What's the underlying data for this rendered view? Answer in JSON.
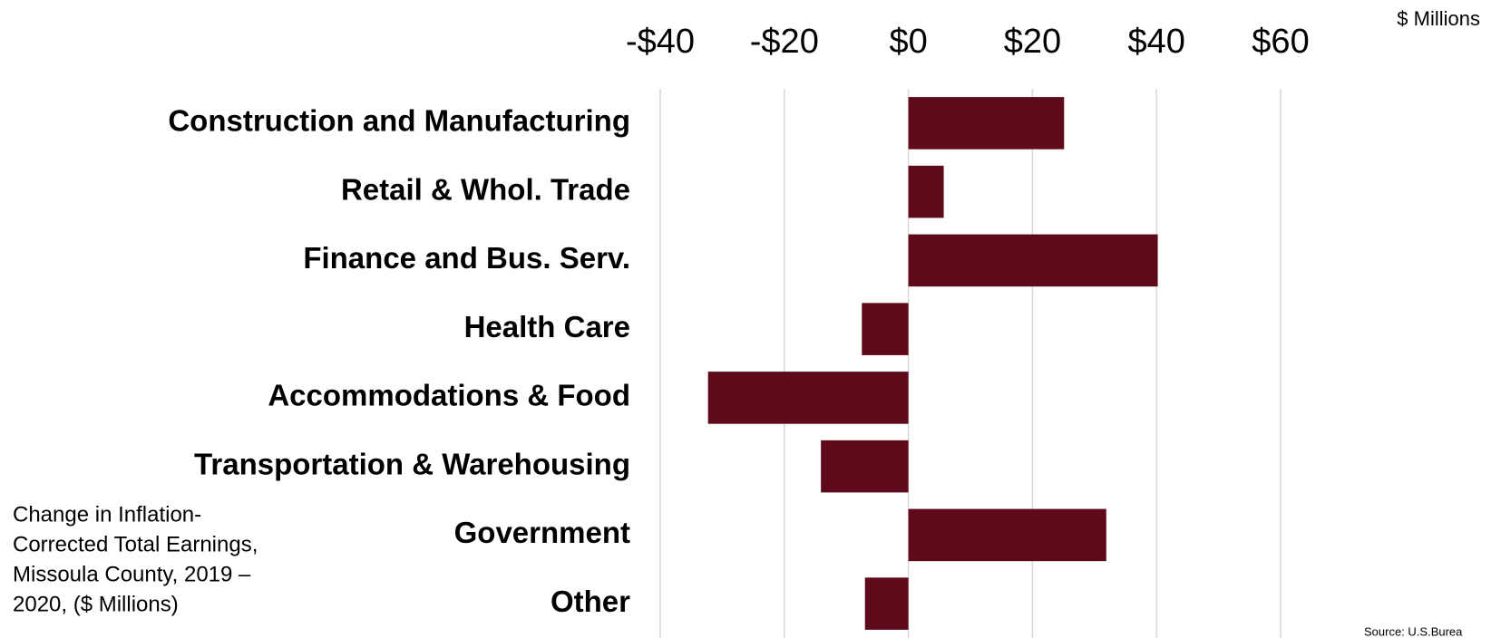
{
  "chart_data": {
    "type": "barh",
    "unit_label": "$ Millions",
    "caption": [
      "Change in Inflation-",
      "Corrected Total Earnings,",
      "Missoula County, 2019 –",
      "2020, ($ Millions)"
    ],
    "source": "Source: U.S.Burea",
    "categories": [
      "Construction and Manufacturing",
      "Retail & Whol. Trade",
      "Finance and Bus. Serv.",
      "Health Care",
      "Accommodations & Food",
      "Transportation & Warehousing",
      "Government",
      "Other"
    ],
    "values": [
      25.1,
      5.7,
      40.2,
      -7.5,
      -32.3,
      -14.1,
      31.9,
      -7.0
    ],
    "color": "#5e0a1b",
    "xlim": [
      -40,
      60
    ],
    "xticks": [
      {
        "value": -40,
        "label": "-$40"
      },
      {
        "value": -20,
        "label": "-$20"
      },
      {
        "value": 0,
        "label": "$0"
      },
      {
        "value": 20,
        "label": "$20"
      },
      {
        "value": 40,
        "label": "$40"
      },
      {
        "value": 60,
        "label": "$60"
      }
    ],
    "grid": true
  }
}
